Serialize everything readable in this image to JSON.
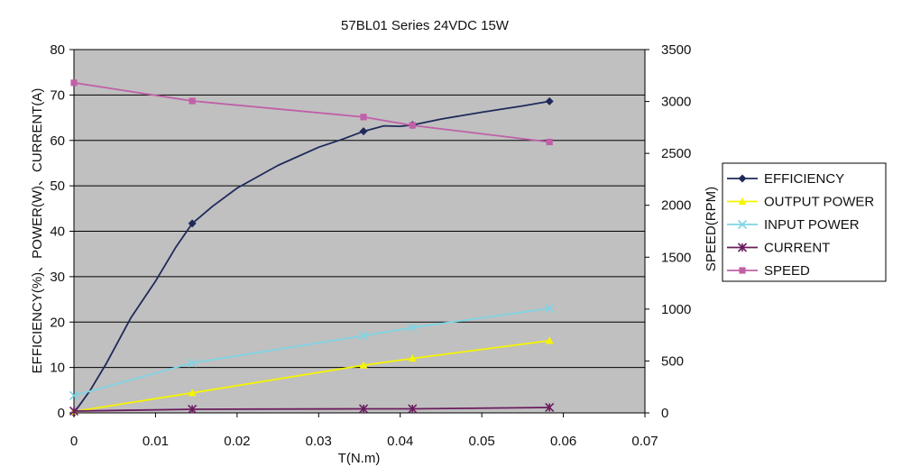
{
  "chart_data": {
    "type": "line",
    "title": "57BL01 Series 24VDC 15W",
    "xlabel": "T(N.m)",
    "ylabel_left": "EFFICIENCY(%)、POWER(W)、CURRENT(A)",
    "ylabel_right": "SPEED(RPM)",
    "xlim": [
      0,
      0.07
    ],
    "ylim_left": [
      0,
      80
    ],
    "ylim_right": [
      0,
      3500
    ],
    "x_ticks": [
      "0",
      "0.01",
      "0.02",
      "0.03",
      "0.04",
      "0.05",
      "0.06",
      "0.07"
    ],
    "y_ticks_left": [
      "0",
      "10",
      "20",
      "30",
      "40",
      "50",
      "60",
      "70",
      "80"
    ],
    "y_ticks_right": [
      "0",
      "500",
      "1000",
      "1500",
      "2000",
      "2500",
      "3000",
      "3500"
    ],
    "grid": "horizontal",
    "plot_background": "#c0c0c0",
    "legend_position": "right",
    "series": [
      {
        "name": "EFFICIENCY",
        "axis": "left",
        "color": "#1f2a5a",
        "marker": "diamond",
        "markers": [
          [
            0,
            0
          ],
          [
            0.0145,
            41.7
          ],
          [
            0.0355,
            62
          ],
          [
            0.0415,
            63.4
          ],
          [
            0.0583,
            68.6
          ]
        ],
        "line": [
          [
            0,
            0
          ],
          [
            0.002,
            5
          ],
          [
            0.004,
            11
          ],
          [
            0.007,
            21
          ],
          [
            0.01,
            29
          ],
          [
            0.0125,
            36.5
          ],
          [
            0.0145,
            41.7
          ],
          [
            0.017,
            45.5
          ],
          [
            0.02,
            49.5
          ],
          [
            0.025,
            54.5
          ],
          [
            0.03,
            58.5
          ],
          [
            0.033,
            60.3
          ],
          [
            0.0355,
            62
          ],
          [
            0.038,
            63.2
          ],
          [
            0.04,
            63.1
          ],
          [
            0.0415,
            63.4
          ],
          [
            0.045,
            64.7
          ],
          [
            0.05,
            66.2
          ],
          [
            0.055,
            67.6
          ],
          [
            0.0583,
            68.6
          ]
        ]
      },
      {
        "name": "OUTPUT POWER",
        "axis": "left",
        "color": "#f5f500",
        "marker": "triangle",
        "markers": [
          [
            0,
            0.3
          ],
          [
            0.0145,
            4.4
          ],
          [
            0.0355,
            10.5
          ],
          [
            0.0415,
            12
          ],
          [
            0.0583,
            15.9
          ]
        ],
        "line": [
          [
            0,
            0.3
          ],
          [
            0.0145,
            4.4
          ],
          [
            0.0355,
            10.5
          ],
          [
            0.0415,
            12
          ],
          [
            0.0583,
            15.9
          ]
        ]
      },
      {
        "name": "INPUT POWER",
        "axis": "left",
        "color": "#7fd4e4",
        "marker": "x",
        "markers": [
          [
            0,
            3.8
          ],
          [
            0.0145,
            11
          ],
          [
            0.0355,
            17
          ],
          [
            0.0415,
            18.8
          ],
          [
            0.0583,
            23
          ]
        ],
        "line": [
          [
            0,
            3.8
          ],
          [
            0.0145,
            11
          ],
          [
            0.0355,
            17
          ],
          [
            0.0415,
            18.8
          ],
          [
            0.0583,
            23
          ]
        ]
      },
      {
        "name": "CURRENT",
        "axis": "left",
        "color": "#6a1c5e",
        "marker": "star",
        "markers": [
          [
            0,
            0.4
          ],
          [
            0.0145,
            0.8
          ],
          [
            0.0355,
            0.9
          ],
          [
            0.0415,
            0.9
          ],
          [
            0.0583,
            1.2
          ]
        ],
        "line": [
          [
            0,
            0.4
          ],
          [
            0.0145,
            0.8
          ],
          [
            0.0355,
            0.9
          ],
          [
            0.0415,
            0.9
          ],
          [
            0.0583,
            1.2
          ]
        ]
      },
      {
        "name": "SPEED",
        "axis": "right",
        "color": "#c060a8",
        "marker": "square",
        "markers": [
          [
            0,
            3180
          ],
          [
            0.0145,
            3005
          ],
          [
            0.0355,
            2850
          ],
          [
            0.0415,
            2770
          ],
          [
            0.0583,
            2610
          ]
        ],
        "line": [
          [
            0,
            3180
          ],
          [
            0.0145,
            3005
          ],
          [
            0.0355,
            2850
          ],
          [
            0.0415,
            2770
          ],
          [
            0.0583,
            2610
          ]
        ]
      }
    ]
  }
}
